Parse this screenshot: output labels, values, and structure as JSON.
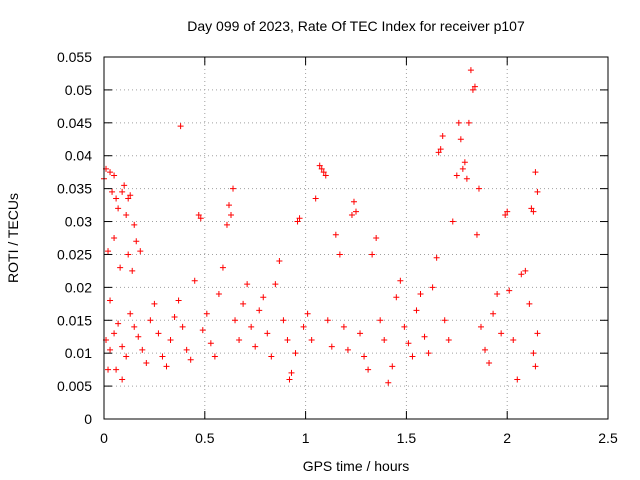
{
  "chart_data": {
    "type": "scatter",
    "title": "Day 099 of 2023, Rate Of TEC Index for receiver p107",
    "xlabel": "GPS time / hours",
    "ylabel": "ROTI / TECUs",
    "xlim": [
      0,
      2.5
    ],
    "ylim": [
      0,
      0.055
    ],
    "xticks": [
      0,
      0.5,
      1,
      1.5,
      2,
      2.5
    ],
    "xtick_labels": [
      "0",
      "0.5",
      "1",
      "1.5",
      "2",
      "2.5"
    ],
    "yticks": [
      0,
      0.005,
      0.01,
      0.015,
      0.02,
      0.025,
      0.03,
      0.035,
      0.04,
      0.045,
      0.05,
      0.055
    ],
    "ytick_labels": [
      "0",
      "0.005",
      "0.01",
      "0.015",
      "0.02",
      "0.025",
      "0.03",
      "0.035",
      "0.04",
      "0.045",
      "0.05",
      "0.055"
    ],
    "grid": true,
    "marker": "+",
    "color": "#ff0000",
    "series": [
      {
        "name": "ROTI",
        "points": [
          [
            0.0,
            0.0365
          ],
          [
            0.01,
            0.038
          ],
          [
            0.02,
            0.0255
          ],
          [
            0.03,
            0.0375
          ],
          [
            0.04,
            0.0345
          ],
          [
            0.05,
            0.037
          ],
          [
            0.06,
            0.0335
          ],
          [
            0.07,
            0.032
          ],
          [
            0.09,
            0.0345
          ],
          [
            0.1,
            0.0355
          ],
          [
            0.11,
            0.031
          ],
          [
            0.12,
            0.0335
          ],
          [
            0.13,
            0.034
          ],
          [
            0.15,
            0.0295
          ],
          [
            0.05,
            0.0275
          ],
          [
            0.08,
            0.023
          ],
          [
            0.03,
            0.018
          ],
          [
            0.06,
            0.0075
          ],
          [
            0.09,
            0.006
          ],
          [
            0.02,
            0.0075
          ],
          [
            0.12,
            0.025
          ],
          [
            0.16,
            0.027
          ],
          [
            0.18,
            0.0255
          ],
          [
            0.14,
            0.0225
          ],
          [
            0.01,
            0.012
          ],
          [
            0.03,
            0.0105
          ],
          [
            0.05,
            0.013
          ],
          [
            0.07,
            0.0145
          ],
          [
            0.09,
            0.011
          ],
          [
            0.11,
            0.0095
          ],
          [
            0.13,
            0.016
          ],
          [
            0.15,
            0.014
          ],
          [
            0.17,
            0.0125
          ],
          [
            0.19,
            0.0105
          ],
          [
            0.21,
            0.0085
          ],
          [
            0.23,
            0.015
          ],
          [
            0.25,
            0.0175
          ],
          [
            0.27,
            0.013
          ],
          [
            0.29,
            0.0095
          ],
          [
            0.31,
            0.008
          ],
          [
            0.33,
            0.012
          ],
          [
            0.35,
            0.0155
          ],
          [
            0.37,
            0.018
          ],
          [
            0.38,
            0.0445
          ],
          [
            0.39,
            0.014
          ],
          [
            0.41,
            0.0105
          ],
          [
            0.43,
            0.009
          ],
          [
            0.45,
            0.021
          ],
          [
            0.47,
            0.031
          ],
          [
            0.48,
            0.0305
          ],
          [
            0.49,
            0.0135
          ],
          [
            0.51,
            0.016
          ],
          [
            0.53,
            0.0115
          ],
          [
            0.55,
            0.0095
          ],
          [
            0.57,
            0.019
          ],
          [
            0.59,
            0.023
          ],
          [
            0.61,
            0.0295
          ],
          [
            0.62,
            0.0325
          ],
          [
            0.63,
            0.031
          ],
          [
            0.64,
            0.035
          ],
          [
            0.65,
            0.015
          ],
          [
            0.67,
            0.012
          ],
          [
            0.69,
            0.0175
          ],
          [
            0.71,
            0.0205
          ],
          [
            0.73,
            0.014
          ],
          [
            0.75,
            0.011
          ],
          [
            0.77,
            0.0165
          ],
          [
            0.79,
            0.0185
          ],
          [
            0.81,
            0.013
          ],
          [
            0.83,
            0.0095
          ],
          [
            0.85,
            0.0205
          ],
          [
            0.87,
            0.024
          ],
          [
            0.89,
            0.015
          ],
          [
            0.91,
            0.012
          ],
          [
            0.92,
            0.006
          ],
          [
            0.93,
            0.007
          ],
          [
            0.95,
            0.01
          ],
          [
            0.96,
            0.03
          ],
          [
            0.97,
            0.0305
          ],
          [
            0.99,
            0.014
          ],
          [
            1.01,
            0.016
          ],
          [
            1.03,
            0.012
          ],
          [
            1.05,
            0.0335
          ],
          [
            1.07,
            0.0385
          ],
          [
            1.08,
            0.038
          ],
          [
            1.09,
            0.0375
          ],
          [
            1.1,
            0.037
          ],
          [
            1.11,
            0.015
          ],
          [
            1.13,
            0.011
          ],
          [
            1.15,
            0.028
          ],
          [
            1.17,
            0.025
          ],
          [
            1.19,
            0.014
          ],
          [
            1.21,
            0.0105
          ],
          [
            1.23,
            0.031
          ],
          [
            1.24,
            0.033
          ],
          [
            1.25,
            0.0315
          ],
          [
            1.27,
            0.013
          ],
          [
            1.29,
            0.0095
          ],
          [
            1.31,
            0.0075
          ],
          [
            1.33,
            0.025
          ],
          [
            1.35,
            0.0275
          ],
          [
            1.37,
            0.015
          ],
          [
            1.39,
            0.012
          ],
          [
            1.41,
            0.0055
          ],
          [
            1.43,
            0.008
          ],
          [
            1.45,
            0.0185
          ],
          [
            1.47,
            0.021
          ],
          [
            1.49,
            0.014
          ],
          [
            1.51,
            0.0115
          ],
          [
            1.53,
            0.0095
          ],
          [
            1.55,
            0.0165
          ],
          [
            1.57,
            0.019
          ],
          [
            1.59,
            0.0125
          ],
          [
            1.61,
            0.01
          ],
          [
            1.63,
            0.02
          ],
          [
            1.65,
            0.0245
          ],
          [
            1.66,
            0.0405
          ],
          [
            1.67,
            0.041
          ],
          [
            1.68,
            0.043
          ],
          [
            1.69,
            0.015
          ],
          [
            1.71,
            0.012
          ],
          [
            1.73,
            0.03
          ],
          [
            1.75,
            0.037
          ],
          [
            1.76,
            0.045
          ],
          [
            1.77,
            0.0425
          ],
          [
            1.78,
            0.038
          ],
          [
            1.79,
            0.039
          ],
          [
            1.8,
            0.0365
          ],
          [
            1.81,
            0.045
          ],
          [
            1.82,
            0.053
          ],
          [
            1.83,
            0.05
          ],
          [
            1.84,
            0.0505
          ],
          [
            1.85,
            0.028
          ],
          [
            1.86,
            0.035
          ],
          [
            1.87,
            0.014
          ],
          [
            1.89,
            0.0105
          ],
          [
            1.91,
            0.0085
          ],
          [
            1.93,
            0.016
          ],
          [
            1.95,
            0.019
          ],
          [
            1.97,
            0.013
          ],
          [
            1.99,
            0.031
          ],
          [
            2.0,
            0.0315
          ],
          [
            2.01,
            0.0195
          ],
          [
            2.03,
            0.012
          ],
          [
            2.05,
            0.006
          ],
          [
            2.07,
            0.022
          ],
          [
            2.09,
            0.0225
          ],
          [
            2.11,
            0.0175
          ],
          [
            2.12,
            0.032
          ],
          [
            2.13,
            0.0315
          ],
          [
            2.14,
            0.0375
          ],
          [
            2.15,
            0.0345
          ],
          [
            2.15,
            0.013
          ],
          [
            2.14,
            0.008
          ],
          [
            2.13,
            0.01
          ]
        ]
      }
    ]
  }
}
